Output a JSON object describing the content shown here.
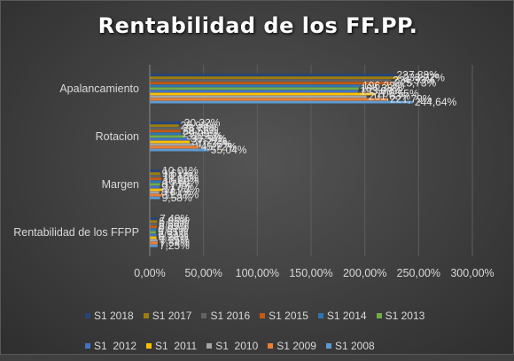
{
  "chart_data": {
    "type": "bar",
    "orientation": "horizontal",
    "title": "Rentabilidad de los FF.PP.",
    "xlabel": "",
    "ylabel": "",
    "xlim": [
      0,
      300
    ],
    "x_ticks": [
      "0,00%",
      "50,00%",
      "100,00%",
      "150,00%",
      "200,00%",
      "250,00%",
      "300,00%"
    ],
    "grid": true,
    "legend_position": "bottom",
    "categories": [
      "Apalancamiento",
      "Rotacion",
      "Margen",
      "Rentabilidad de los FFPP"
    ],
    "series": [
      {
        "name": "S1 2018",
        "color": "#264478",
        "values": [
          227.88,
          30.32,
          10.01,
          7.49
        ]
      },
      {
        "name": "S1 2017",
        "color": "#9E7C0C",
        "values": [
          233.72,
          26.9,
          9.61,
          6.95
        ]
      },
      {
        "name": "S1 2016",
        "color": "#636363",
        "values": [
          224.33,
          28.79,
          10.16,
          6.56
        ]
      },
      {
        "name": "S1 2015",
        "color": "#C55A11",
        "values": [
          225.73,
          28.55,
          11.0,
          6.69
        ]
      },
      {
        "name": "S1 2014",
        "color": "#2E75B6",
        "values": [
          196.22,
          29.09,
          10.6,
          6.07
        ]
      },
      {
        "name": "S1 2013",
        "color": "#70AD47",
        "values": [
          194.38,
          32.56,
          9.71,
          5.65
        ]
      },
      {
        "name": "S1  2012",
        "color": "#4472C4",
        "values": [
          193.63,
          36.34,
          9.17,
          6.31
        ]
      },
      {
        "name": "S1  2011",
        "color": "#FFC000",
        "values": [
          209.55,
          37.22,
          11.73,
          6.2
        ]
      },
      {
        "name": "S1  2010",
        "color": "#A5A5A5",
        "values": [
          201.63,
          41.36,
          8.81,
          7.25
        ]
      },
      {
        "name": "S1 2009",
        "color": "#ED7D31",
        "values": [
          221.79,
          45.72,
          11.17,
          7.34
        ]
      },
      {
        "name": "S1 2008",
        "color": "#5B9BD5",
        "values": [
          244.64,
          55.04,
          9.58,
          7.25
        ]
      }
    ],
    "data_labels": [
      [
        "227,88%",
        "233,72%",
        "224,33%",
        "225,73%",
        "196,22%",
        "194,38%",
        "193,63%",
        "209,55%",
        "201,63%",
        "221,79%",
        "244,64%"
      ],
      [
        "30,32%",
        "26,90%",
        "28,79%",
        "28,55%",
        "29,09%",
        "32,56%",
        "36,34%",
        "37,22%",
        "41,36%",
        "45,72%",
        "55,04%"
      ],
      [
        "10,01%",
        "9,61%",
        "10,16%",
        "11,00%",
        "10,60%",
        "9,71%",
        "9,17%",
        "11,73%",
        "8,81%",
        "11,17%",
        "9,58%"
      ],
      [
        "7,49%",
        "6,95%",
        "6,56%",
        "6,69%",
        "6,07%",
        "5,65%",
        "6,31%",
        "6,20%",
        "7,25%",
        "7,34%",
        "7,25%"
      ]
    ]
  }
}
